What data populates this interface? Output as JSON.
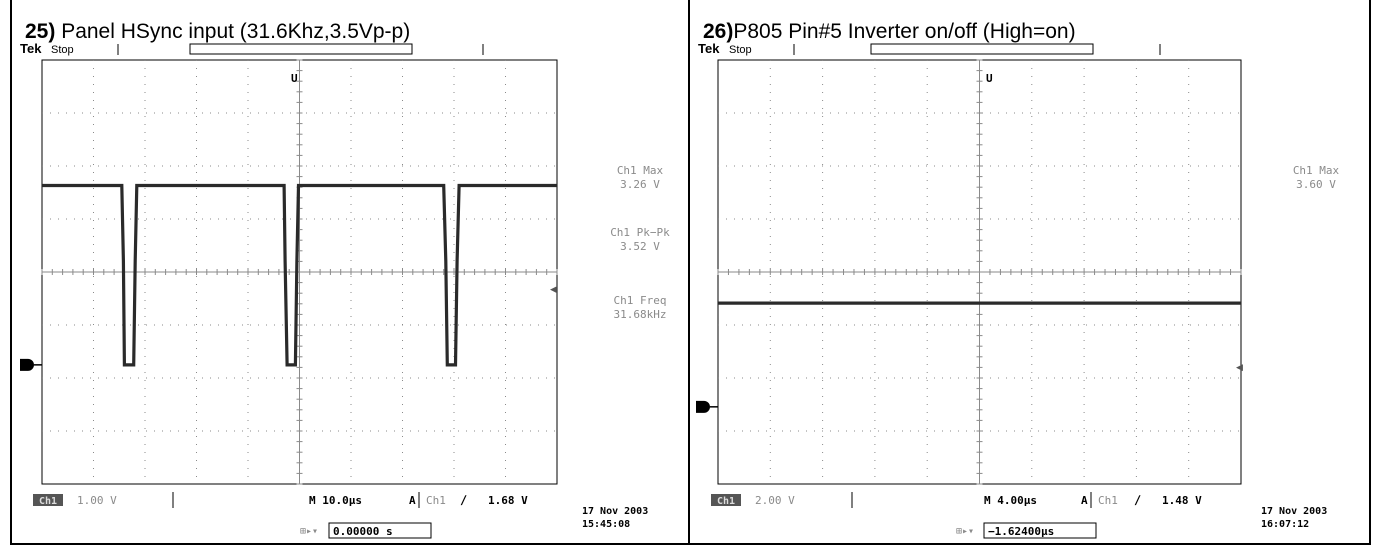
{
  "panels": [
    {
      "title_number": "25)",
      "title_text": " Panel HSync input (31.6Khz,3.5Vp-p)",
      "header": {
        "brand": "Tek",
        "state": "Stop"
      },
      "measurements": [
        {
          "label": "Ch1 Max",
          "value": "3.26 V"
        },
        {
          "label": "Ch1 Pk−Pk",
          "value": "3.52 V"
        },
        {
          "label": "Ch1 Freq",
          "value": "31.68kHz"
        }
      ],
      "footer": {
        "channel_badge": "Ch1",
        "volts_per_div": "1.00 V",
        "timebase": "M 10.0µs",
        "trigger_mode": "A",
        "trigger_source": "Ch1",
        "trigger_slope": "∕",
        "trigger_level": "1.68 V",
        "position": "0.00000 s",
        "date": "17 Nov 2003",
        "time": "15:45:08"
      }
    },
    {
      "title_number": "26)",
      "title_text": "P805 Pin#5 Inverter on/off (High=on)",
      "header": {
        "brand": "Tek",
        "state": "Stop"
      },
      "measurements": [
        {
          "label": "Ch1 Max",
          "value": "3.60 V"
        }
      ],
      "footer": {
        "channel_badge": "Ch1",
        "volts_per_div": "2.00 V",
        "timebase": "M 4.00µs",
        "trigger_mode": "A",
        "trigger_source": "Ch1",
        "trigger_slope": "∕",
        "trigger_level": "1.48 V",
        "position": "−1.62400µs",
        "date": "17 Nov 2003",
        "time": "16:07:12"
      }
    }
  ],
  "chart_data": [
    {
      "type": "line",
      "grid": true,
      "x_divisions": 10,
      "y_divisions": 8,
      "series": [
        {
          "x": [
            0,
            1.55,
            1.58,
            1.6,
            1.78,
            1.81,
            1.84,
            4.7,
            4.72,
            4.76,
            4.92,
            4.95,
            4.98,
            7.8,
            7.84,
            7.87,
            8.03,
            8.06,
            8.1,
            10
          ],
          "y": [
            1.68,
            1.68,
            0.2,
            -1.84,
            -1.84,
            0.2,
            1.68,
            1.68,
            0.2,
            -1.84,
            -1.84,
            0.2,
            1.68,
            1.68,
            0.2,
            -1.84,
            -1.84,
            0.2,
            1.68,
            1.68
          ]
        }
      ],
      "ground_marker_y": -1.84,
      "colors": {
        "trace": "#2a2a2a",
        "grid": "#8a8a8a"
      }
    },
    {
      "type": "line",
      "grid": true,
      "x_divisions": 10,
      "y_divisions": 8,
      "series": [
        {
          "x": [
            0,
            10
          ],
          "y": [
            3.6,
            3.6
          ]
        }
      ],
      "ground_marker_y": -1.84,
      "colors": {
        "trace": "#2a2a2a",
        "grid": "#8a8a8a"
      }
    }
  ]
}
